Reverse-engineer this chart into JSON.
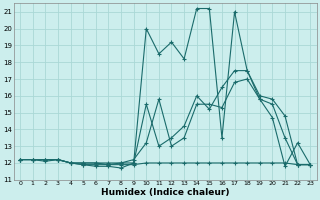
{
  "xlabel": "Humidex (Indice chaleur)",
  "bg_color": "#cceeed",
  "grid_color": "#aad8d6",
  "line_color": "#1a6b6b",
  "xlim": [
    -0.5,
    23.5
  ],
  "ylim": [
    11,
    21.5
  ],
  "xticks": [
    0,
    1,
    2,
    3,
    4,
    5,
    6,
    7,
    8,
    9,
    10,
    11,
    12,
    13,
    14,
    15,
    16,
    17,
    18,
    19,
    20,
    21,
    22,
    23
  ],
  "yticks": [
    11,
    12,
    13,
    14,
    15,
    16,
    17,
    18,
    19,
    20,
    21
  ],
  "series": [
    [
      12.2,
      12.2,
      12.1,
      12.2,
      12.0,
      11.9,
      11.8,
      11.8,
      11.7,
      12.0,
      20.0,
      18.5,
      19.2,
      18.2,
      21.2,
      21.2,
      13.5,
      21.0,
      17.5,
      15.8,
      14.7,
      11.8,
      13.2,
      11.9
    ],
    [
      12.2,
      12.2,
      12.2,
      12.2,
      12.0,
      12.0,
      12.0,
      11.9,
      12.0,
      12.0,
      15.5,
      13.0,
      13.5,
      14.2,
      16.0,
      15.2,
      16.5,
      17.5,
      17.5,
      16.0,
      15.8,
      14.8,
      11.9,
      11.9
    ],
    [
      12.2,
      12.2,
      12.2,
      12.2,
      12.0,
      11.9,
      11.9,
      11.9,
      11.9,
      11.9,
      12.0,
      12.0,
      12.0,
      12.0,
      12.0,
      12.0,
      12.0,
      12.0,
      12.0,
      12.0,
      12.0,
      12.0,
      11.9,
      11.9
    ],
    [
      12.2,
      12.2,
      12.2,
      12.2,
      12.0,
      12.0,
      12.0,
      12.0,
      12.0,
      12.2,
      13.2,
      15.8,
      13.0,
      13.5,
      15.5,
      15.5,
      15.3,
      16.8,
      17.0,
      15.8,
      15.5,
      13.5,
      11.9,
      11.9
    ]
  ]
}
